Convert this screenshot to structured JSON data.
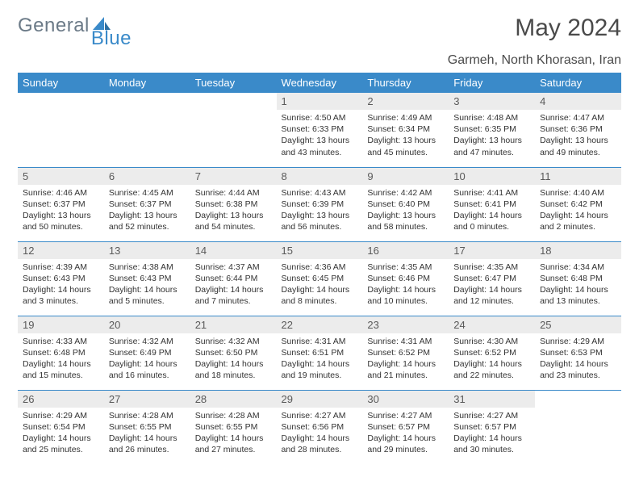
{
  "logo": {
    "general": "General",
    "blue": "Blue"
  },
  "title": "May 2024",
  "location": "Garmeh, North Khorasan, Iran",
  "colors": {
    "header_bg": "#3a8ac9",
    "header_text": "#ffffff",
    "daynum_bg": "#ececec",
    "body_text": "#333333",
    "title_text": "#4a4a4a",
    "logo_general": "#6b7a87",
    "logo_blue": "#3a8ac9",
    "week_border": "#3a8ac9"
  },
  "day_headers": [
    "Sunday",
    "Monday",
    "Tuesday",
    "Wednesday",
    "Thursday",
    "Friday",
    "Saturday"
  ],
  "weeks": [
    [
      null,
      null,
      null,
      {
        "n": "1",
        "sr": "Sunrise: 4:50 AM",
        "ss": "Sunset: 6:33 PM",
        "d1": "Daylight: 13 hours",
        "d2": "and 43 minutes."
      },
      {
        "n": "2",
        "sr": "Sunrise: 4:49 AM",
        "ss": "Sunset: 6:34 PM",
        "d1": "Daylight: 13 hours",
        "d2": "and 45 minutes."
      },
      {
        "n": "3",
        "sr": "Sunrise: 4:48 AM",
        "ss": "Sunset: 6:35 PM",
        "d1": "Daylight: 13 hours",
        "d2": "and 47 minutes."
      },
      {
        "n": "4",
        "sr": "Sunrise: 4:47 AM",
        "ss": "Sunset: 6:36 PM",
        "d1": "Daylight: 13 hours",
        "d2": "and 49 minutes."
      }
    ],
    [
      {
        "n": "5",
        "sr": "Sunrise: 4:46 AM",
        "ss": "Sunset: 6:37 PM",
        "d1": "Daylight: 13 hours",
        "d2": "and 50 minutes."
      },
      {
        "n": "6",
        "sr": "Sunrise: 4:45 AM",
        "ss": "Sunset: 6:37 PM",
        "d1": "Daylight: 13 hours",
        "d2": "and 52 minutes."
      },
      {
        "n": "7",
        "sr": "Sunrise: 4:44 AM",
        "ss": "Sunset: 6:38 PM",
        "d1": "Daylight: 13 hours",
        "d2": "and 54 minutes."
      },
      {
        "n": "8",
        "sr": "Sunrise: 4:43 AM",
        "ss": "Sunset: 6:39 PM",
        "d1": "Daylight: 13 hours",
        "d2": "and 56 minutes."
      },
      {
        "n": "9",
        "sr": "Sunrise: 4:42 AM",
        "ss": "Sunset: 6:40 PM",
        "d1": "Daylight: 13 hours",
        "d2": "and 58 minutes."
      },
      {
        "n": "10",
        "sr": "Sunrise: 4:41 AM",
        "ss": "Sunset: 6:41 PM",
        "d1": "Daylight: 14 hours",
        "d2": "and 0 minutes."
      },
      {
        "n": "11",
        "sr": "Sunrise: 4:40 AM",
        "ss": "Sunset: 6:42 PM",
        "d1": "Daylight: 14 hours",
        "d2": "and 2 minutes."
      }
    ],
    [
      {
        "n": "12",
        "sr": "Sunrise: 4:39 AM",
        "ss": "Sunset: 6:43 PM",
        "d1": "Daylight: 14 hours",
        "d2": "and 3 minutes."
      },
      {
        "n": "13",
        "sr": "Sunrise: 4:38 AM",
        "ss": "Sunset: 6:43 PM",
        "d1": "Daylight: 14 hours",
        "d2": "and 5 minutes."
      },
      {
        "n": "14",
        "sr": "Sunrise: 4:37 AM",
        "ss": "Sunset: 6:44 PM",
        "d1": "Daylight: 14 hours",
        "d2": "and 7 minutes."
      },
      {
        "n": "15",
        "sr": "Sunrise: 4:36 AM",
        "ss": "Sunset: 6:45 PM",
        "d1": "Daylight: 14 hours",
        "d2": "and 8 minutes."
      },
      {
        "n": "16",
        "sr": "Sunrise: 4:35 AM",
        "ss": "Sunset: 6:46 PM",
        "d1": "Daylight: 14 hours",
        "d2": "and 10 minutes."
      },
      {
        "n": "17",
        "sr": "Sunrise: 4:35 AM",
        "ss": "Sunset: 6:47 PM",
        "d1": "Daylight: 14 hours",
        "d2": "and 12 minutes."
      },
      {
        "n": "18",
        "sr": "Sunrise: 4:34 AM",
        "ss": "Sunset: 6:48 PM",
        "d1": "Daylight: 14 hours",
        "d2": "and 13 minutes."
      }
    ],
    [
      {
        "n": "19",
        "sr": "Sunrise: 4:33 AM",
        "ss": "Sunset: 6:48 PM",
        "d1": "Daylight: 14 hours",
        "d2": "and 15 minutes."
      },
      {
        "n": "20",
        "sr": "Sunrise: 4:32 AM",
        "ss": "Sunset: 6:49 PM",
        "d1": "Daylight: 14 hours",
        "d2": "and 16 minutes."
      },
      {
        "n": "21",
        "sr": "Sunrise: 4:32 AM",
        "ss": "Sunset: 6:50 PM",
        "d1": "Daylight: 14 hours",
        "d2": "and 18 minutes."
      },
      {
        "n": "22",
        "sr": "Sunrise: 4:31 AM",
        "ss": "Sunset: 6:51 PM",
        "d1": "Daylight: 14 hours",
        "d2": "and 19 minutes."
      },
      {
        "n": "23",
        "sr": "Sunrise: 4:31 AM",
        "ss": "Sunset: 6:52 PM",
        "d1": "Daylight: 14 hours",
        "d2": "and 21 minutes."
      },
      {
        "n": "24",
        "sr": "Sunrise: 4:30 AM",
        "ss": "Sunset: 6:52 PM",
        "d1": "Daylight: 14 hours",
        "d2": "and 22 minutes."
      },
      {
        "n": "25",
        "sr": "Sunrise: 4:29 AM",
        "ss": "Sunset: 6:53 PM",
        "d1": "Daylight: 14 hours",
        "d2": "and 23 minutes."
      }
    ],
    [
      {
        "n": "26",
        "sr": "Sunrise: 4:29 AM",
        "ss": "Sunset: 6:54 PM",
        "d1": "Daylight: 14 hours",
        "d2": "and 25 minutes."
      },
      {
        "n": "27",
        "sr": "Sunrise: 4:28 AM",
        "ss": "Sunset: 6:55 PM",
        "d1": "Daylight: 14 hours",
        "d2": "and 26 minutes."
      },
      {
        "n": "28",
        "sr": "Sunrise: 4:28 AM",
        "ss": "Sunset: 6:55 PM",
        "d1": "Daylight: 14 hours",
        "d2": "and 27 minutes."
      },
      {
        "n": "29",
        "sr": "Sunrise: 4:27 AM",
        "ss": "Sunset: 6:56 PM",
        "d1": "Daylight: 14 hours",
        "d2": "and 28 minutes."
      },
      {
        "n": "30",
        "sr": "Sunrise: 4:27 AM",
        "ss": "Sunset: 6:57 PM",
        "d1": "Daylight: 14 hours",
        "d2": "and 29 minutes."
      },
      {
        "n": "31",
        "sr": "Sunrise: 4:27 AM",
        "ss": "Sunset: 6:57 PM",
        "d1": "Daylight: 14 hours",
        "d2": "and 30 minutes."
      },
      null
    ]
  ]
}
